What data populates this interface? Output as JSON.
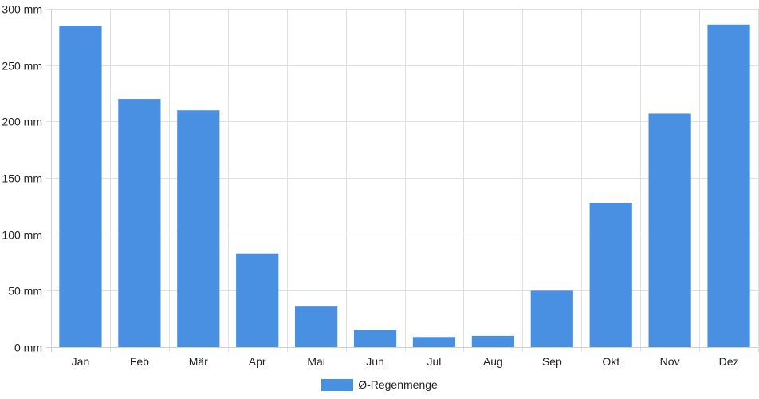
{
  "chart_data": {
    "type": "bar",
    "categories": [
      "Jan",
      "Feb",
      "Mär",
      "Apr",
      "Mai",
      "Jun",
      "Jul",
      "Aug",
      "Sep",
      "Okt",
      "Nov",
      "Dez"
    ],
    "series": [
      {
        "name": "Ø-Regenmenge",
        "values": [
          285,
          220,
          210,
          83,
          36,
          15,
          9,
          10,
          50,
          128,
          207,
          286
        ],
        "color": "#4a90e2"
      }
    ],
    "ylim": [
      0,
      300
    ],
    "yticks": [
      0,
      50,
      100,
      150,
      200,
      250,
      300
    ],
    "ytick_labels": [
      "0 mm",
      "50 mm",
      "100 mm",
      "150 mm",
      "200 mm",
      "250 mm",
      "300 mm"
    ],
    "grid": true,
    "legend_position": "bottom-center"
  }
}
